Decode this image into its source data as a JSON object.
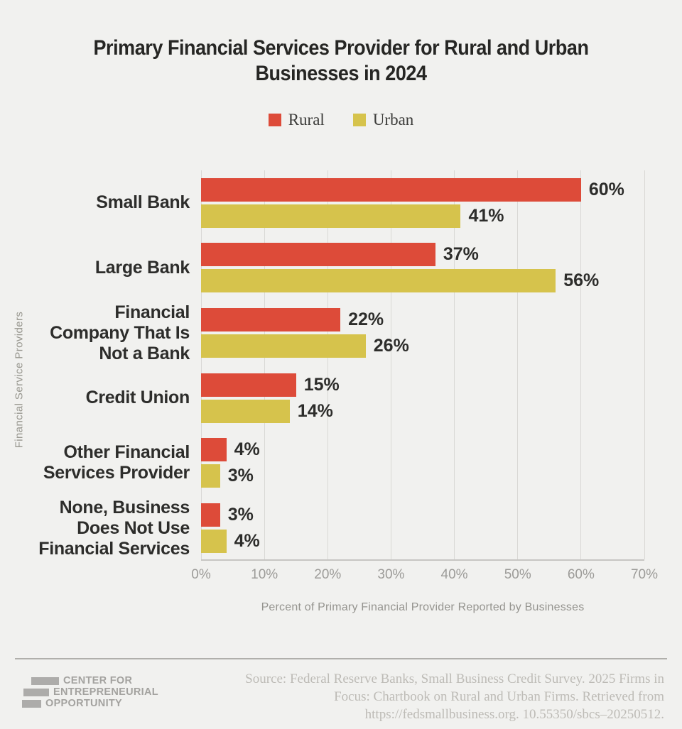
{
  "title": {
    "line1": "Primary Financial Services Provider for Rural and Urban",
    "line2": "Businesses in 2024"
  },
  "colors": {
    "rural": "#dd4b39",
    "urban": "#d6c34c",
    "background": "#f1f1ef",
    "dark_text": "#2d2d2b",
    "gridline": "#d9d8d5"
  },
  "chart_data": {
    "type": "bar",
    "orientation": "horizontal",
    "title": "Primary Financial Services Provider for Rural and Urban Businesses in 2024",
    "categories": [
      "Small Bank",
      "Large Bank",
      "Financial\nCompany That Is\nNot a Bank",
      "Credit Union",
      "Other Financial\nServices Provider",
      "None, Business\nDoes Not Use\nFinancial Services"
    ],
    "series": [
      {
        "name": "Rural",
        "color": "#dd4b39",
        "values": [
          60,
          37,
          22,
          15,
          4,
          3
        ]
      },
      {
        "name": "Urban",
        "color": "#d6c34c",
        "values": [
          41,
          56,
          26,
          14,
          3,
          4
        ]
      }
    ],
    "value_suffix": "%",
    "xlabel": "Percent of Primary Financial Provider Reported by Businesses",
    "ylabel": "Financial Service Providers",
    "xlim": [
      0,
      70
    ],
    "xticks": [
      "0%",
      "10%",
      "20%",
      "30%",
      "40%",
      "50%",
      "60%",
      "70%"
    ],
    "grid": "vertical",
    "legend_position": "top-center"
  },
  "footer": {
    "logo_lines": [
      "CENTER FOR",
      "ENTREPRENEURIAL",
      "OPPORTUNITY"
    ],
    "source_lines": [
      "Source: Federal Reserve Banks, Small Business Credit Survey. 2025 Firms in",
      "Focus: Chartbook on Rural and Urban Firms. Retrieved from",
      "https://fedsmallbusiness.org. 10.55350/sbcs–20250512."
    ]
  }
}
